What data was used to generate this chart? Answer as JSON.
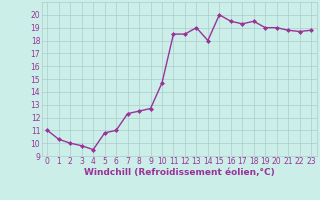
{
  "x": [
    0,
    1,
    2,
    3,
    4,
    5,
    6,
    7,
    8,
    9,
    10,
    11,
    12,
    13,
    14,
    15,
    16,
    17,
    18,
    19,
    20,
    21,
    22,
    23
  ],
  "y": [
    11,
    10.3,
    10.0,
    9.8,
    9.5,
    10.8,
    11.0,
    12.3,
    12.5,
    12.7,
    14.7,
    18.5,
    18.5,
    19.0,
    18.0,
    20.0,
    19.5,
    19.3,
    19.5,
    19.0,
    19.0,
    18.8,
    18.7,
    18.8
  ],
  "line_color": "#993399",
  "marker": "D",
  "marker_size": 2.0,
  "linewidth": 1.0,
  "bg_color": "#cceee8",
  "grid_color": "#aacccc",
  "xlabel": "Windchill (Refroidissement éolien,°C)",
  "xlabel_fontsize": 6.5,
  "xlabel_color": "#993399",
  "tick_color": "#993399",
  "tick_fontsize": 5.5,
  "ylim": [
    9,
    21
  ],
  "yticks": [
    9,
    10,
    11,
    12,
    13,
    14,
    15,
    16,
    17,
    18,
    19,
    20
  ],
  "xlim": [
    -0.5,
    23.5
  ],
  "xticks": [
    0,
    1,
    2,
    3,
    4,
    5,
    6,
    7,
    8,
    9,
    10,
    11,
    12,
    13,
    14,
    15,
    16,
    17,
    18,
    19,
    20,
    21,
    22,
    23
  ]
}
